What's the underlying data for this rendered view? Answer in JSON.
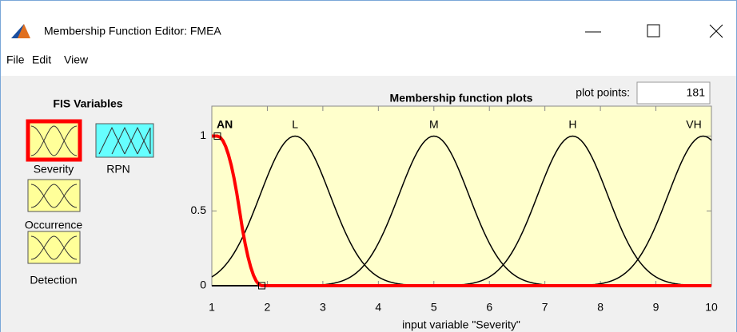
{
  "window": {
    "title": "Membership Function Editor: FMEA"
  },
  "menu": [
    "File",
    "Edit",
    "View"
  ],
  "fis_variables": {
    "heading": "FIS Variables",
    "items": [
      {
        "name": "Severity",
        "selected": true,
        "color": "#ffff99"
      },
      {
        "name": "RPN",
        "selected": false,
        "color": "#66ffff"
      },
      {
        "name": "Occurrence",
        "selected": false,
        "color": "#ffff99"
      },
      {
        "name": "Detection",
        "selected": false,
        "color": "#ffff99"
      }
    ]
  },
  "plot_points": {
    "label": "plot points:",
    "value": 181
  },
  "chart_data": {
    "type": "line",
    "title": "Membership function plots",
    "xlabel": "input variable \"Severity\"",
    "xlim": [
      1,
      10
    ],
    "ylim": [
      0,
      1.2
    ],
    "xticks": [
      1,
      2,
      3,
      4,
      5,
      6,
      7,
      8,
      9,
      10
    ],
    "yticks": [
      0,
      0.5,
      1
    ],
    "background": "#ffffcc",
    "series": [
      {
        "name": "AN",
        "color": "#ff0000",
        "selected": true,
        "mf": "zmf",
        "params": [
          1.1,
          1.9
        ]
      },
      {
        "name": "L",
        "color": "#000000",
        "selected": false,
        "mf": "gaussmf",
        "params": [
          0.63,
          2.5
        ]
      },
      {
        "name": "M",
        "color": "#000000",
        "selected": false,
        "mf": "gaussmf",
        "params": [
          0.63,
          5
        ]
      },
      {
        "name": "H",
        "color": "#000000",
        "selected": false,
        "mf": "gaussmf",
        "params": [
          0.63,
          7.5
        ]
      },
      {
        "name": "VH",
        "color": "#000000",
        "selected": false,
        "mf": "gaussmf",
        "params": [
          0.63,
          9.85
        ]
      }
    ]
  }
}
